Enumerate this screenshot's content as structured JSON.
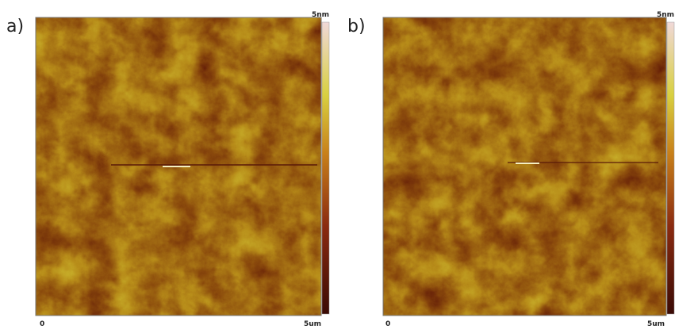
{
  "panels": [
    {
      "label": "a)",
      "scale_max": "5nm",
      "x_start": "0",
      "x_end": "5um"
    },
    {
      "label": "b)",
      "scale_max": "5nm",
      "x_start": "0",
      "x_end": "5um"
    }
  ]
}
